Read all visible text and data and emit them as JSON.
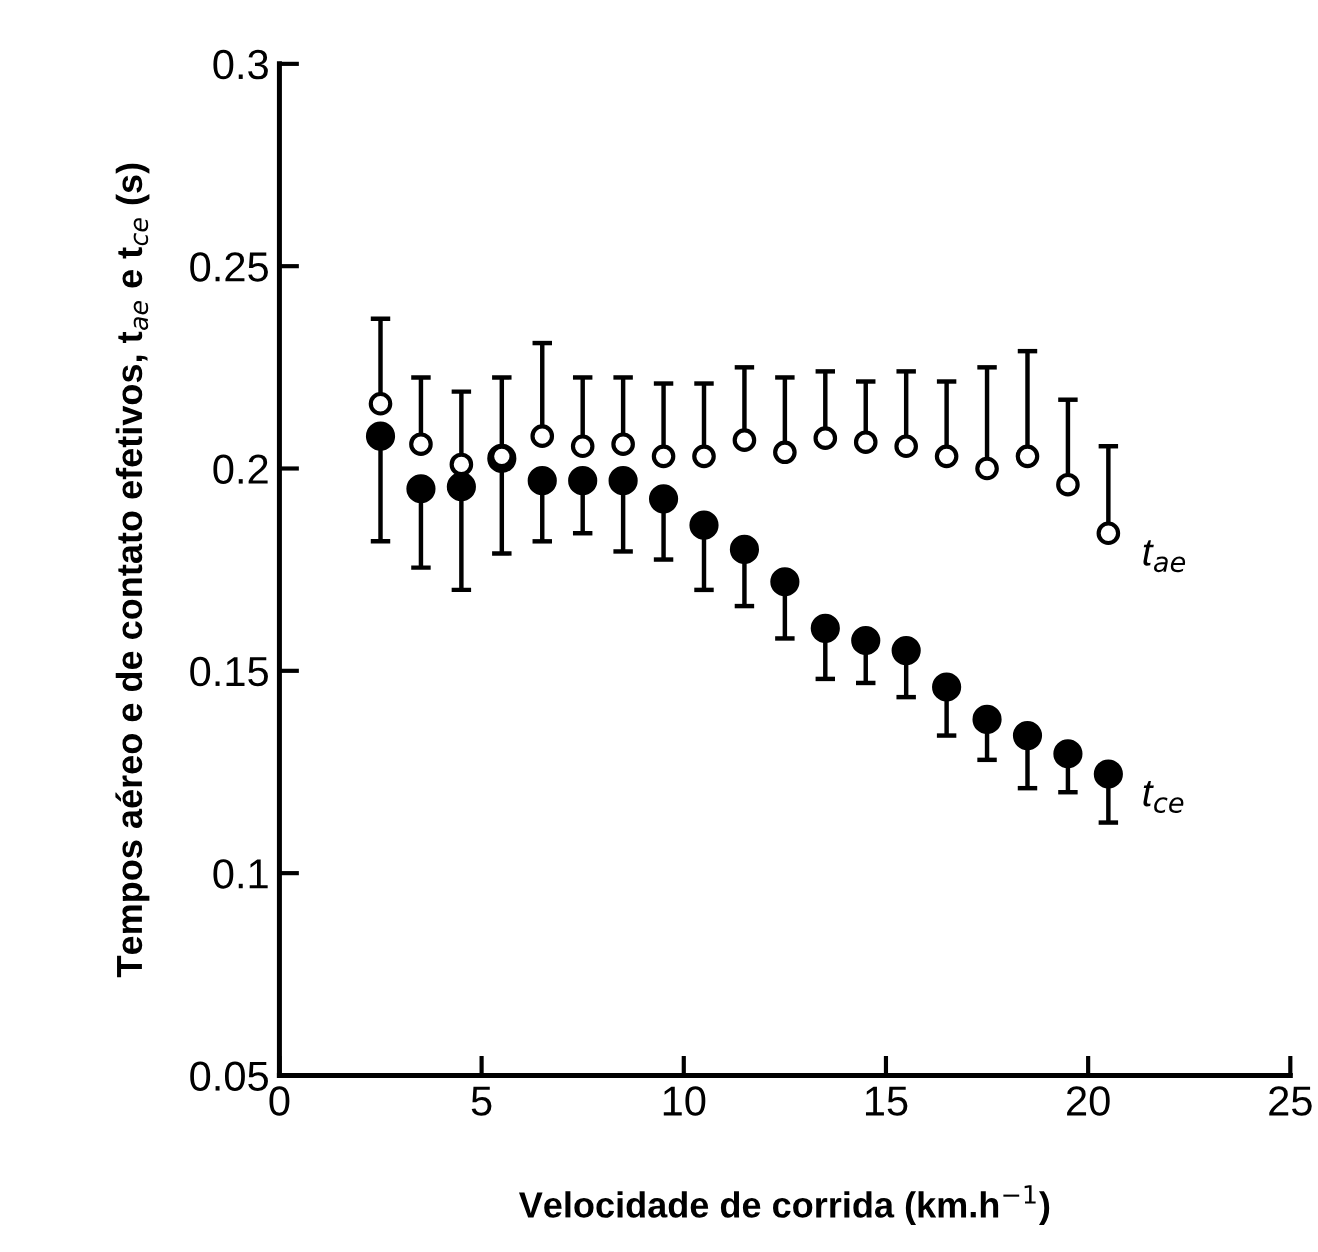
{
  "chart_data": {
    "type": "scatter",
    "xlabel": "Velocidade de corrida (km.h$^{−1}$)",
    "ylabel": "Tempos aéreo e de contato efetivos, t$_{ae}$ e t$_{ce}$ (s)",
    "x": [
      2.5,
      3.5,
      4.5,
      5.5,
      6.5,
      7.5,
      8.5,
      9.5,
      10.5,
      11.5,
      12.5,
      13.5,
      14.5,
      15.5,
      16.5,
      17.5,
      18.5,
      19.5,
      20.5
    ],
    "series": [
      {
        "name": "t$_{ce}$",
        "color": "#000000",
        "values": [
          0.208,
          0.195,
          0.1955,
          0.2025,
          0.197,
          0.197,
          0.197,
          0.1925,
          0.186,
          0.18,
          0.172,
          0.1605,
          0.1575,
          0.155,
          0.146,
          0.138,
          0.134,
          0.1295,
          0.1245
        ],
        "errors": [
          [
            0.182,
            0.208
          ],
          [
            0.1755,
            0.195
          ],
          [
            0.17,
            0.1955
          ],
          [
            0.179,
            0.2025
          ],
          [
            0.182,
            0.197
          ],
          [
            0.184,
            0.197
          ],
          [
            0.1795,
            0.197
          ],
          [
            0.1775,
            0.1925
          ],
          [
            0.17,
            0.186
          ],
          [
            0.166,
            0.18
          ],
          [
            0.158,
            0.172
          ],
          [
            0.148,
            0.1605
          ],
          [
            0.147,
            0.1575
          ],
          [
            0.1435,
            0.155
          ],
          [
            0.134,
            0.146
          ],
          [
            0.128,
            0.138
          ],
          [
            0.121,
            0.134
          ],
          [
            0.12,
            0.1295
          ],
          [
            0.1125,
            0.1245
          ]
        ]
      },
      {
        "name": "t$_{ae}$",
        "color": "#ffffff",
        "values": [
          0.216,
          0.206,
          0.201,
          0.203,
          0.208,
          0.2055,
          0.206,
          0.203,
          0.203,
          0.207,
          0.204,
          0.2075,
          0.2065,
          0.2055,
          0.203,
          0.2,
          0.203,
          0.196,
          0.184
        ],
        "errors": [
          [
            0.216,
            0.237
          ],
          [
            0.206,
            0.2225
          ],
          [
            0.201,
            0.219
          ],
          [
            0.203,
            0.2225
          ],
          [
            0.208,
            0.231
          ],
          [
            0.2055,
            0.2225
          ],
          [
            0.206,
            0.2225
          ],
          [
            0.203,
            0.221
          ],
          [
            0.203,
            0.221
          ],
          [
            0.207,
            0.225
          ],
          [
            0.204,
            0.2225
          ],
          [
            0.2075,
            0.224
          ],
          [
            0.2065,
            0.2215
          ],
          [
            0.2055,
            0.224
          ],
          [
            0.203,
            0.2215
          ],
          [
            0.2,
            0.225
          ],
          [
            0.203,
            0.229
          ],
          [
            0.196,
            0.217
          ],
          [
            0.184,
            0.2055
          ]
        ]
      }
    ],
    "xlim": [
      0,
      25
    ],
    "xticks": [
      0,
      5,
      10,
      15,
      20,
      25
    ],
    "ylim": [
      0.05,
      0.3
    ],
    "yticks": [
      0.05,
      0.1,
      0.15,
      0.2,
      0.25,
      0.3
    ],
    "marker": "circle"
  }
}
